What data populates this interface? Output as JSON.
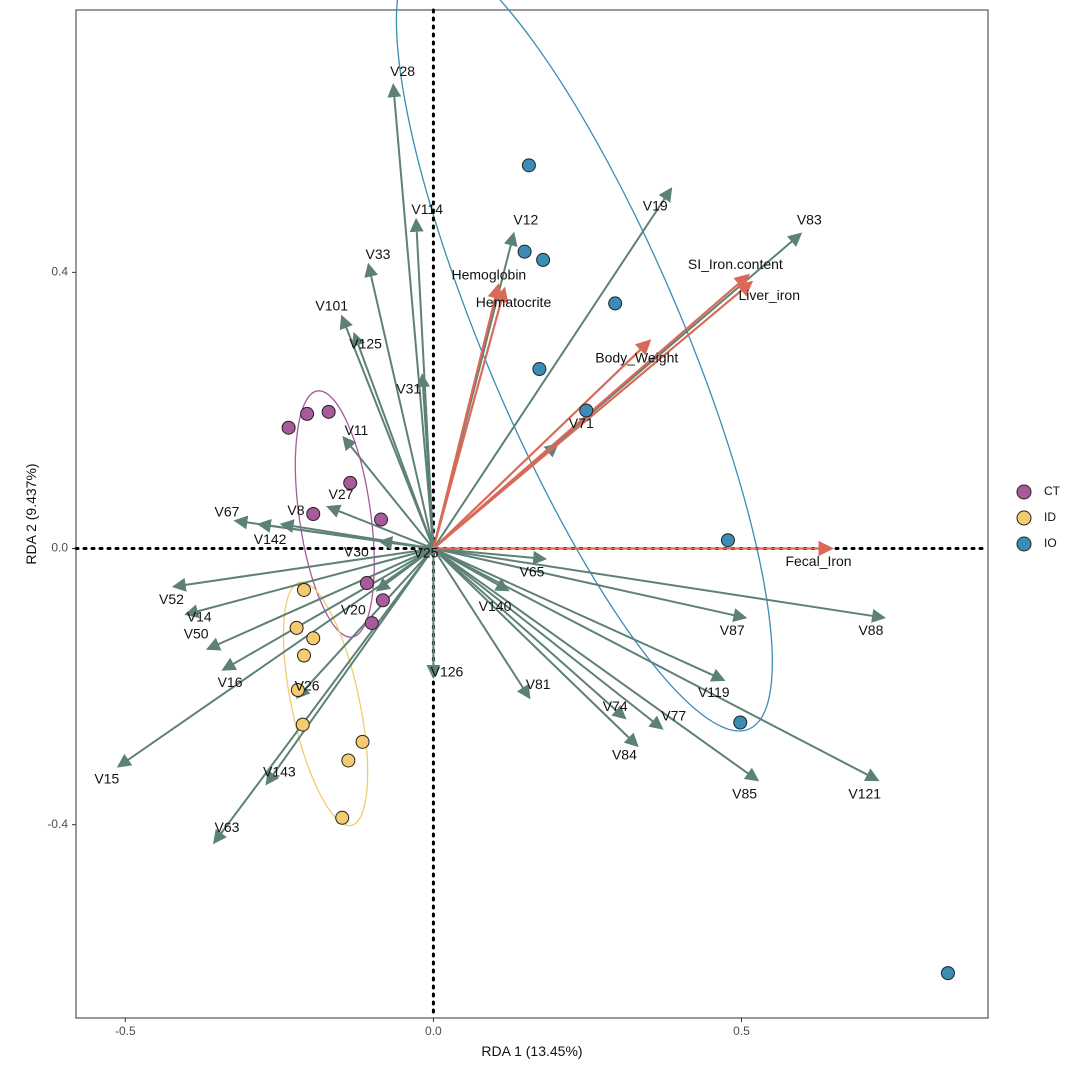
{
  "chart_data": {
    "type": "scatter",
    "title": "",
    "xlabel": "RDA 1 (13.45%)",
    "ylabel": "RDA 2 (9.437%)",
    "xlim": [
      -0.58,
      0.9
    ],
    "ylim": [
      -0.68,
      0.78
    ],
    "xticks": [
      -0.5,
      0.0,
      0.5
    ],
    "xtick_labels": [
      "-0.5",
      "0.0",
      "0.5"
    ],
    "yticks": [
      -0.4,
      0.0,
      0.4
    ],
    "ytick_labels": [
      "-0.4",
      "0.0",
      "0.4"
    ],
    "grid": false,
    "legend_position": "right",
    "legend": [
      {
        "name": "CT",
        "color": "#A85A9D"
      },
      {
        "name": "ID",
        "color": "#F2CC6E"
      },
      {
        "name": "IO",
        "color": "#3A8DB5"
      }
    ],
    "species_arrow_color": "#5E8177",
    "env_arrow_color": "#D96A58",
    "species_arrows": [
      {
        "name": "V28",
        "x": -0.065,
        "y": 0.67,
        "lx": -0.05,
        "ly": 0.69
      },
      {
        "name": "V114",
        "x": -0.028,
        "y": 0.475,
        "lx": -0.01,
        "ly": 0.49
      },
      {
        "name": "V12",
        "x": 0.13,
        "y": 0.455,
        "lx": 0.15,
        "ly": 0.475
      },
      {
        "name": "V19",
        "x": 0.385,
        "y": 0.52,
        "lx": 0.36,
        "ly": 0.495
      },
      {
        "name": "V83",
        "x": 0.595,
        "y": 0.455,
        "lx": 0.61,
        "ly": 0.475
      },
      {
        "name": "V33",
        "x": -0.105,
        "y": 0.41,
        "lx": -0.09,
        "ly": 0.425
      },
      {
        "name": "V101",
        "x": -0.148,
        "y": 0.335,
        "lx": -0.165,
        "ly": 0.35
      },
      {
        "name": "V125",
        "x": -0.128,
        "y": 0.31,
        "lx": -0.11,
        "ly": 0.295
      },
      {
        "name": "V31",
        "x": -0.018,
        "y": 0.25,
        "lx": -0.04,
        "ly": 0.23
      },
      {
        "name": "V11",
        "x": -0.145,
        "y": 0.16,
        "lx": -0.125,
        "ly": 0.17
      },
      {
        "name": "V71",
        "x": 0.2,
        "y": 0.15,
        "lx": 0.24,
        "ly": 0.18
      },
      {
        "name": "V27",
        "x": -0.17,
        "y": 0.06,
        "lx": -0.15,
        "ly": 0.077
      },
      {
        "name": "V8",
        "x": -0.245,
        "y": 0.035,
        "lx": -0.223,
        "ly": 0.054
      },
      {
        "name": "V67",
        "x": -0.32,
        "y": 0.04,
        "lx": -0.335,
        "ly": 0.052
      },
      {
        "name": "V142",
        "x": -0.282,
        "y": 0.035,
        "lx": -0.265,
        "ly": 0.012
      },
      {
        "name": "V30",
        "x": -0.085,
        "y": 0.01,
        "lx": -0.125,
        "ly": -0.006
      },
      {
        "name": "V25",
        "x": -0.02,
        "y": -0.005,
        "lx": -0.012,
        "ly": -0.008
      },
      {
        "name": "V65",
        "x": 0.18,
        "y": -0.015,
        "lx": 0.16,
        "ly": -0.035
      },
      {
        "name": "V140",
        "x": 0.12,
        "y": -0.06,
        "lx": 0.1,
        "ly": -0.085
      },
      {
        "name": "V81",
        "x": 0.155,
        "y": -0.215,
        "lx": 0.17,
        "ly": -0.198
      },
      {
        "name": "V87",
        "x": 0.505,
        "y": -0.1,
        "lx": 0.485,
        "ly": -0.12
      },
      {
        "name": "V88",
        "x": 0.73,
        "y": -0.1,
        "lx": 0.71,
        "ly": -0.12
      },
      {
        "name": "V52",
        "x": -0.42,
        "y": -0.055,
        "lx": -0.425,
        "ly": -0.075
      },
      {
        "name": "V14",
        "x": -0.4,
        "y": -0.095,
        "lx": -0.38,
        "ly": -0.1
      },
      {
        "name": "V50",
        "x": -0.365,
        "y": -0.145,
        "lx": -0.385,
        "ly": -0.125
      },
      {
        "name": "V16",
        "x": -0.34,
        "y": -0.175,
        "lx": -0.33,
        "ly": -0.195
      },
      {
        "name": "V20",
        "x": -0.09,
        "y": -0.06,
        "lx": -0.13,
        "ly": -0.09
      },
      {
        "name": "V126",
        "x": 0.0,
        "y": -0.185,
        "lx": 0.022,
        "ly": -0.18
      },
      {
        "name": "V26",
        "x": -0.22,
        "y": -0.215,
        "lx": -0.205,
        "ly": -0.2
      },
      {
        "name": "V74",
        "x": 0.31,
        "y": -0.245,
        "lx": 0.295,
        "ly": -0.23
      },
      {
        "name": "V77",
        "x": 0.37,
        "y": -0.26,
        "lx": 0.39,
        "ly": -0.244
      },
      {
        "name": "V119",
        "x": 0.47,
        "y": -0.19,
        "lx": 0.455,
        "ly": -0.21
      },
      {
        "name": "V84",
        "x": 0.33,
        "y": -0.285,
        "lx": 0.31,
        "ly": -0.3
      },
      {
        "name": "V85",
        "x": 0.525,
        "y": -0.335,
        "lx": 0.505,
        "ly": -0.357
      },
      {
        "name": "V121",
        "x": 0.72,
        "y": -0.335,
        "lx": 0.7,
        "ly": -0.357
      },
      {
        "name": "V15",
        "x": -0.51,
        "y": -0.315,
        "lx": -0.53,
        "ly": -0.335
      },
      {
        "name": "V143",
        "x": -0.27,
        "y": -0.34,
        "lx": -0.25,
        "ly": -0.325
      },
      {
        "name": "V63",
        "x": -0.355,
        "y": -0.425,
        "lx": -0.335,
        "ly": -0.405
      }
    ],
    "env_arrows": [
      {
        "name": "Hemoglobin",
        "x": 0.105,
        "y": 0.38,
        "lx": 0.09,
        "ly": 0.395
      },
      {
        "name": "Hematocrite",
        "x": 0.115,
        "y": 0.375,
        "lx": 0.13,
        "ly": 0.355
      },
      {
        "name": "SI_Iron.content",
        "x": 0.51,
        "y": 0.395,
        "lx": 0.49,
        "ly": 0.41
      },
      {
        "name": "Liver_iron",
        "x": 0.515,
        "y": 0.385,
        "lx": 0.545,
        "ly": 0.365
      },
      {
        "name": "Body_Weight",
        "x": 0.35,
        "y": 0.3,
        "lx": 0.33,
        "ly": 0.275
      },
      {
        "name": "Fecal_Iron",
        "x": 0.645,
        "y": 0.0,
        "lx": 0.625,
        "ly": -0.02
      }
    ],
    "samples": [
      {
        "group": "CT",
        "x": -0.235,
        "y": 0.175
      },
      {
        "group": "CT",
        "x": -0.205,
        "y": 0.195
      },
      {
        "group": "CT",
        "x": -0.17,
        "y": 0.198
      },
      {
        "group": "CT",
        "x": -0.135,
        "y": 0.095
      },
      {
        "group": "CT",
        "x": -0.195,
        "y": 0.05
      },
      {
        "group": "CT",
        "x": -0.085,
        "y": 0.042
      },
      {
        "group": "CT",
        "x": -0.108,
        "y": -0.05
      },
      {
        "group": "CT",
        "x": -0.082,
        "y": -0.075
      },
      {
        "group": "CT",
        "x": -0.1,
        "y": -0.108
      },
      {
        "group": "ID",
        "x": -0.21,
        "y": -0.06
      },
      {
        "group": "ID",
        "x": -0.222,
        "y": -0.115
      },
      {
        "group": "ID",
        "x": -0.195,
        "y": -0.13
      },
      {
        "group": "ID",
        "x": -0.21,
        "y": -0.155
      },
      {
        "group": "ID",
        "x": -0.22,
        "y": -0.205
      },
      {
        "group": "ID",
        "x": -0.212,
        "y": -0.255
      },
      {
        "group": "ID",
        "x": -0.115,
        "y": -0.28
      },
      {
        "group": "ID",
        "x": -0.138,
        "y": -0.307
      },
      {
        "group": "ID",
        "x": -0.148,
        "y": -0.39
      },
      {
        "group": "IO",
        "x": 0.155,
        "y": 0.555
      },
      {
        "group": "IO",
        "x": 0.148,
        "y": 0.43
      },
      {
        "group": "IO",
        "x": 0.178,
        "y": 0.418
      },
      {
        "group": "IO",
        "x": 0.295,
        "y": 0.355
      },
      {
        "group": "IO",
        "x": 0.172,
        "y": 0.26
      },
      {
        "group": "IO",
        "x": 0.248,
        "y": 0.2
      },
      {
        "group": "IO",
        "x": 0.478,
        "y": 0.012
      },
      {
        "group": "IO",
        "x": 0.498,
        "y": -0.252
      },
      {
        "group": "IO",
        "x": 0.835,
        "y": -0.615
      }
    ],
    "ellipses": [
      {
        "group": "CT",
        "cx": -0.16,
        "cy": 0.05,
        "rx": 0.058,
        "ry": 0.18,
        "angle": -8
      },
      {
        "group": "ID",
        "cx": -0.175,
        "cy": -0.225,
        "rx": 0.055,
        "ry": 0.18,
        "angle": -12
      },
      {
        "group": "IO",
        "cx": 0.245,
        "cy": 0.3,
        "rx": 0.16,
        "ry": 0.61,
        "angle": -23
      }
    ]
  }
}
